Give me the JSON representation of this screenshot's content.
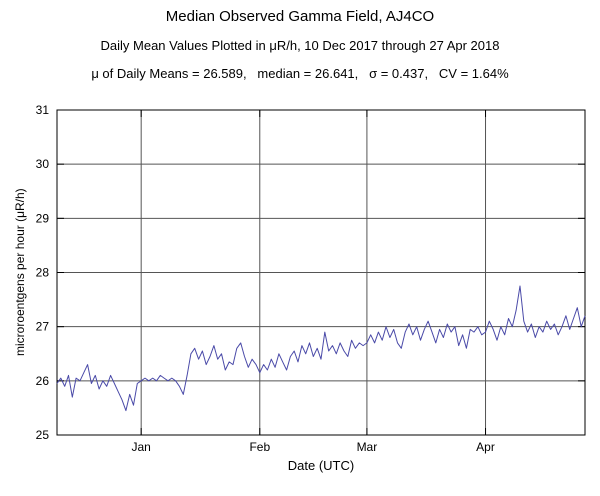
{
  "page": {
    "title": "Median Observed Gamma Field, AJ4CO",
    "subtitle": "Daily Mean Values Plotted in μR/h, 10 Dec 2017 through 27 Apr 2018",
    "stats_line": "μ of Daily Means = 26.589,   median = 26.641,   σ = 0.437,   CV = 1.64%"
  },
  "chart_data": {
    "type": "line",
    "title": "Median Observed Gamma Field, AJ4CO",
    "subtitle": "Daily Mean Values Plotted in μR/h, 10 Dec 2017 through 27 Apr 2018",
    "stats": {
      "mean_of_daily_means": 26.589,
      "median": 26.641,
      "sigma": 0.437,
      "cv_percent": 1.64
    },
    "xlabel": "Date (UTC)",
    "ylabel": "microroentgens per hour (μR/h)",
    "ylim": [
      25,
      31
    ],
    "yticks": [
      25,
      26,
      27,
      28,
      29,
      30,
      31
    ],
    "x_start_date": "2017-12-10",
    "x_end_date": "2018-04-27",
    "x_total_days": 139,
    "xticks": [
      {
        "day": 22,
        "label": "Jan"
      },
      {
        "day": 53,
        "label": "Feb"
      },
      {
        "day": 81,
        "label": "Mar"
      },
      {
        "day": 112,
        "label": "Apr"
      }
    ],
    "grid": true,
    "line_color": "#4a4aa8",
    "values": [
      25.95,
      26.05,
      25.9,
      26.1,
      25.7,
      26.05,
      26.0,
      26.15,
      26.3,
      25.95,
      26.1,
      25.85,
      26.0,
      25.9,
      26.1,
      25.95,
      25.8,
      25.65,
      25.45,
      25.75,
      25.55,
      25.95,
      26.0,
      26.05,
      26.0,
      26.05,
      26.0,
      26.1,
      26.05,
      26.0,
      26.05,
      26.0,
      25.9,
      25.75,
      26.1,
      26.5,
      26.6,
      26.4,
      26.55,
      26.3,
      26.45,
      26.65,
      26.4,
      26.5,
      26.2,
      26.35,
      26.3,
      26.6,
      26.7,
      26.45,
      26.25,
      26.4,
      26.3,
      26.15,
      26.3,
      26.2,
      26.4,
      26.25,
      26.5,
      26.35,
      26.2,
      26.45,
      26.55,
      26.35,
      26.65,
      26.5,
      26.7,
      26.45,
      26.6,
      26.4,
      26.9,
      26.55,
      26.65,
      26.5,
      26.7,
      26.55,
      26.45,
      26.75,
      26.6,
      26.7,
      26.65,
      26.7,
      26.85,
      26.7,
      26.9,
      26.75,
      27.0,
      26.8,
      26.95,
      26.7,
      26.6,
      26.9,
      27.05,
      26.85,
      27.0,
      26.75,
      26.95,
      27.1,
      26.9,
      26.7,
      26.95,
      26.8,
      27.05,
      26.9,
      27.0,
      26.65,
      26.85,
      26.6,
      26.95,
      26.9,
      27.0,
      26.85,
      26.9,
      27.1,
      26.95,
      26.75,
      27.0,
      26.85,
      27.15,
      27.0,
      27.3,
      27.75,
      27.1,
      26.9,
      27.05,
      26.8,
      27.0,
      26.9,
      27.1,
      26.95,
      27.05,
      26.85,
      27.0,
      27.2,
      26.95,
      27.15,
      27.35,
      27.0,
      27.2
    ]
  }
}
